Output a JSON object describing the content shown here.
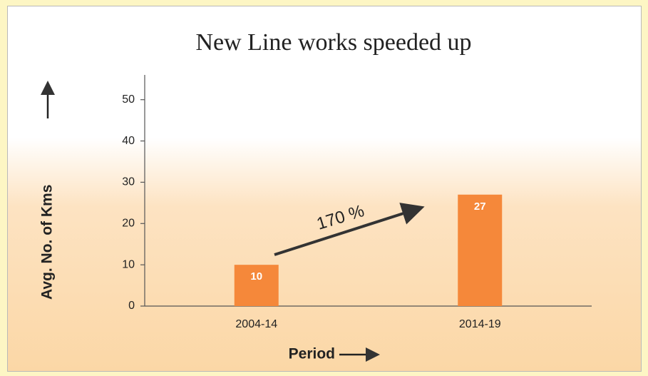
{
  "chart_data": {
    "type": "bar",
    "title": "New Line works speeded up",
    "x_label": "Period",
    "y_label": "Avg. No. of Kms",
    "categories": [
      "2004-14",
      "2014-19"
    ],
    "values": [
      10,
      27
    ],
    "color": "#f5883a",
    "ylim": [
      0,
      56
    ],
    "yticks": [
      0,
      10,
      20,
      30,
      40,
      50
    ],
    "grid": false,
    "annotation": "170 %"
  }
}
